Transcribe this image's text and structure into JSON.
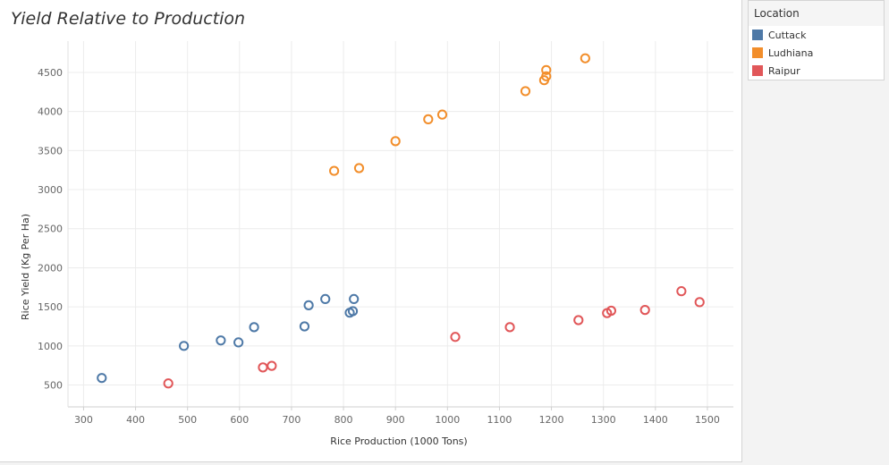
{
  "chart_data": {
    "type": "scatter",
    "title": "Yield Relative to Production",
    "xlabel": "Rice Production (1000 Tons)",
    "ylabel": "Rice Yield (Kg Per Ha)",
    "xlim": [
      270,
      1550
    ],
    "ylim": [
      220,
      4900
    ],
    "xticks": [
      300,
      400,
      500,
      600,
      700,
      800,
      900,
      1000,
      1100,
      1200,
      1300,
      1400,
      1500
    ],
    "yticks": [
      500,
      1000,
      1500,
      2000,
      2500,
      3000,
      3500,
      4000,
      4500
    ],
    "grid": true,
    "marker": "open-circle",
    "legend_position": "top-right",
    "series": [
      {
        "name": "Cuttack",
        "color": "#4e79a7",
        "points": [
          {
            "x": 335,
            "y": 590
          },
          {
            "x": 493,
            "y": 1000
          },
          {
            "x": 564,
            "y": 1070
          },
          {
            "x": 598,
            "y": 1045
          },
          {
            "x": 628,
            "y": 1240
          },
          {
            "x": 725,
            "y": 1250
          },
          {
            "x": 733,
            "y": 1520
          },
          {
            "x": 765,
            "y": 1600
          },
          {
            "x": 812,
            "y": 1425
          },
          {
            "x": 818,
            "y": 1445
          },
          {
            "x": 820,
            "y": 1600
          }
        ]
      },
      {
        "name": "Ludhiana",
        "color": "#f28e2b",
        "points": [
          {
            "x": 782,
            "y": 3240
          },
          {
            "x": 830,
            "y": 3275
          },
          {
            "x": 900,
            "y": 3620
          },
          {
            "x": 963,
            "y": 3900
          },
          {
            "x": 990,
            "y": 3960
          },
          {
            "x": 1150,
            "y": 4260
          },
          {
            "x": 1186,
            "y": 4400
          },
          {
            "x": 1190,
            "y": 4450
          },
          {
            "x": 1190,
            "y": 4530
          },
          {
            "x": 1265,
            "y": 4680
          }
        ]
      },
      {
        "name": "Raipur",
        "color": "#e15759",
        "points": [
          {
            "x": 463,
            "y": 520
          },
          {
            "x": 645,
            "y": 725
          },
          {
            "x": 662,
            "y": 745
          },
          {
            "x": 1015,
            "y": 1115
          },
          {
            "x": 1120,
            "y": 1240
          },
          {
            "x": 1252,
            "y": 1330
          },
          {
            "x": 1307,
            "y": 1420
          },
          {
            "x": 1315,
            "y": 1450
          },
          {
            "x": 1380,
            "y": 1460
          },
          {
            "x": 1450,
            "y": 1700
          },
          {
            "x": 1485,
            "y": 1560
          }
        ]
      }
    ]
  },
  "legend": {
    "title": "Location",
    "items": [
      {
        "label": "Cuttack",
        "color": "#4e79a7"
      },
      {
        "label": "Ludhiana",
        "color": "#f28e2b"
      },
      {
        "label": "Raipur",
        "color": "#e15759"
      }
    ]
  }
}
